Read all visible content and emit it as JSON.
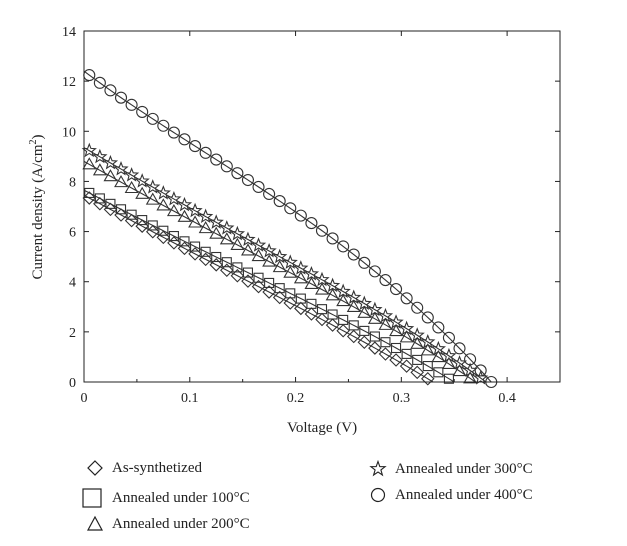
{
  "chart_data": {
    "type": "scatter",
    "title": "",
    "xlabel": "Voltage (V)",
    "ylabel": "Current density (A/cm",
    "ylabel_sup": "2",
    "ylabel_close": ")",
    "xlim": [
      0,
      0.45
    ],
    "ylim": [
      0,
      14
    ],
    "xticks": [
      0,
      0.1,
      0.2,
      0.3,
      0.4
    ],
    "xtick_labels": [
      "0",
      "0.1",
      "0.2",
      "0.3",
      "0.4"
    ],
    "yticks": [
      0,
      2,
      4,
      6,
      8,
      10,
      12,
      14
    ],
    "ytick_labels": [
      "0",
      "2",
      "4",
      "6",
      "8",
      "10",
      "12",
      "14"
    ],
    "grid": false,
    "series": [
      {
        "name": "As-synthetized",
        "marker": "diamond",
        "jsc": 7.45,
        "voc": 0.33,
        "k": 0.15,
        "n": 2.8,
        "step": 0.01
      },
      {
        "name": "Annealed under 100°C",
        "marker": "square",
        "jsc": 7.65,
        "voc": 0.35,
        "k": 0.2,
        "n": 2.6,
        "step": 0.01
      },
      {
        "name": "Annealed under 200°C",
        "marker": "triangle",
        "jsc": 8.8,
        "voc": 0.37,
        "k": 0.25,
        "n": 2.6,
        "step": 0.01
      },
      {
        "name": "Annealed under 300°C",
        "marker": "star",
        "jsc": 9.35,
        "voc": 0.38,
        "k": 0.27,
        "n": 2.6,
        "step": 0.01
      },
      {
        "name": "Annealed under 400°C",
        "marker": "circle",
        "jsc": 12.4,
        "voc": 0.385,
        "k": 0.45,
        "n": 1.8,
        "step": 0.01
      }
    ]
  }
}
